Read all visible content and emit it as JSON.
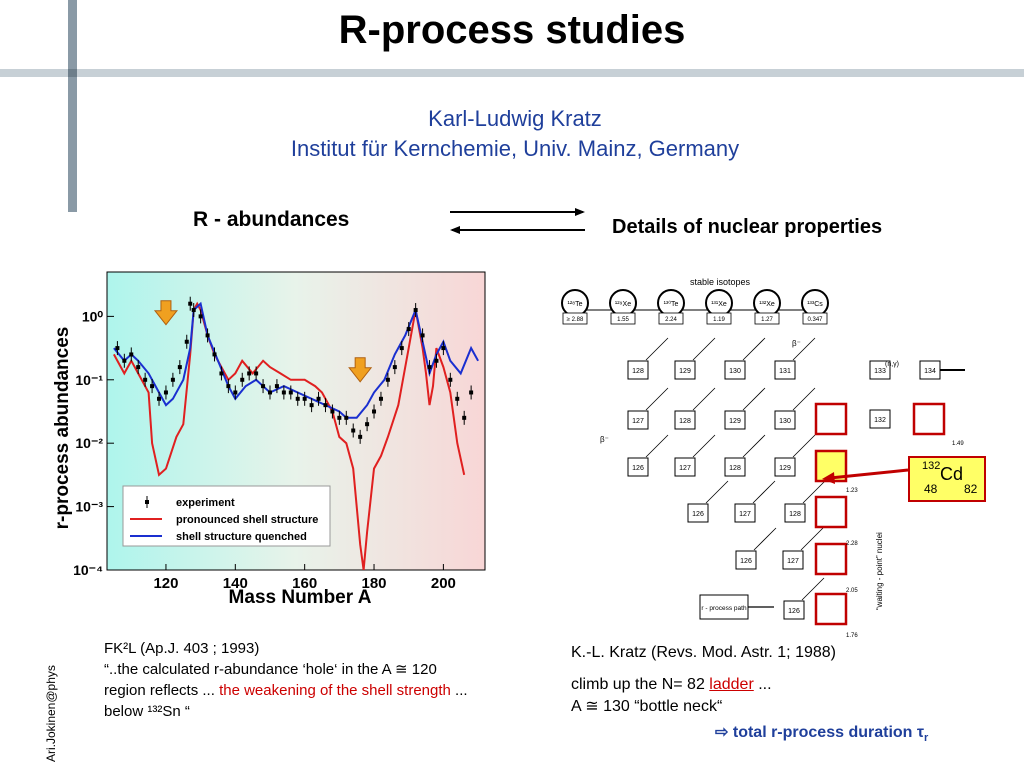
{
  "title": "R-process studies",
  "author": {
    "name": "Karl-Ludwig Kratz",
    "institute": "Institut für Kernchemie, Univ. Mainz, Germany"
  },
  "labels": {
    "r_abundances": "R - abundances",
    "nuclear_details": "Details of nuclear properties"
  },
  "left_ref": {
    "line1": "FK²L (Ap.J. 403 ; 1993)",
    "line2": "“..the calculated r-abundance ‘hole‘ in the A ≅ 120",
    "line3_a": "region reflects ... ",
    "line3_b": "the weakening of the shell strength",
    "line3_c": " ...",
    "line4": "below ¹³²Sn “"
  },
  "right_ref": {
    "line1": "K.-L. Kratz (Revs. Mod. Astr. 1; 1988)",
    "line2_a": "climb up the N= 82 ",
    "line2_b": "ladder",
    "line2_c": " ...",
    "line3": "A ≅ 130 “bottle neck“",
    "conclusion": "total r-process duration τ",
    "conclusion_sub": "r"
  },
  "vertical_text": "Ari.Jokinen@phys",
  "cd_label": {
    "mass": "132",
    "symbol": "Cd",
    "z": "48",
    "n": "82"
  },
  "colors": {
    "title_blue": "#1f3f9b",
    "red_highlight": "#cc0000",
    "experiment": "#000000",
    "pronounced": "#e02020",
    "quenched": "#1a2fd0"
  },
  "chart_data": {
    "type": "line",
    "xlabel": "Mass Number A",
    "ylabel": "r-process abundances",
    "xlim": [
      103,
      212
    ],
    "ylim_log10": [
      -4,
      0.7
    ],
    "log_y": true,
    "x_ticks": [
      120,
      140,
      160,
      180,
      200
    ],
    "y_tick_labels": [
      "10⁰",
      "10⁻¹",
      "10⁻²",
      "10⁻³",
      "10⁻⁴"
    ],
    "legend": [
      "experiment",
      "pronounced shell structure",
      "shell structure quenched"
    ],
    "series": [
      {
        "name": "pronounced shell structure",
        "color": "#e02020",
        "x": [
          105,
          108,
          110,
          112,
          115,
          116,
          118,
          120,
          123,
          125,
          127,
          128,
          129,
          130,
          132,
          134,
          136,
          138,
          140,
          142,
          145,
          148,
          150,
          153,
          156,
          160,
          163,
          165,
          168,
          170,
          172,
          174,
          175,
          176,
          177,
          178,
          180,
          182,
          184,
          187,
          190,
          192,
          194,
          195,
          196,
          197,
          198,
          200,
          202,
          204,
          206
        ],
        "log_y": [
          -0.6,
          -0.9,
          -0.7,
          -0.9,
          -1.2,
          -2.0,
          -2.5,
          -2.4,
          -1.9,
          -1.7,
          -0.6,
          0.1,
          0.2,
          0.1,
          -0.3,
          -0.6,
          -0.8,
          -1.0,
          -0.9,
          -0.7,
          -0.9,
          -0.7,
          -0.8,
          -0.9,
          -1.0,
          -1.0,
          -1.1,
          -1.2,
          -1.5,
          -1.9,
          -2.0,
          -2.4,
          -3.0,
          -3.6,
          -4.0,
          -3.4,
          -2.4,
          -2.2,
          -1.9,
          -1.4,
          -0.5,
          0.1,
          -0.5,
          -0.9,
          -1.4,
          -1.1,
          -0.5,
          -0.8,
          -1.2,
          -2.0,
          -2.5
        ]
      },
      {
        "name": "shell structure quenched",
        "color": "#1a2fd0",
        "x": [
          105,
          108,
          110,
          112,
          115,
          118,
          120,
          122,
          125,
          127,
          128,
          130,
          132,
          135,
          138,
          140,
          143,
          146,
          150,
          154,
          158,
          162,
          166,
          170,
          172,
          175,
          178,
          180,
          183,
          186,
          189,
          192,
          194,
          196,
          198,
          200,
          202,
          205,
          208,
          210
        ],
        "log_y": [
          -0.5,
          -0.7,
          -0.6,
          -0.7,
          -0.9,
          -1.2,
          -1.4,
          -1.3,
          -1.0,
          -0.5,
          0.1,
          0.2,
          -0.3,
          -0.7,
          -1.1,
          -1.3,
          -1.1,
          -1.0,
          -1.2,
          -1.1,
          -1.2,
          -1.3,
          -1.4,
          -1.5,
          -1.6,
          -1.6,
          -1.4,
          -1.2,
          -1.0,
          -0.6,
          -0.3,
          0.1,
          -0.4,
          -0.9,
          -0.6,
          -0.4,
          -0.7,
          -0.9,
          -0.5,
          -0.7
        ]
      },
      {
        "name": "experiment",
        "color": "#000000",
        "x": [
          106,
          108,
          110,
          112,
          114,
          116,
          118,
          120,
          122,
          124,
          126,
          127,
          128,
          130,
          132,
          134,
          136,
          138,
          140,
          142,
          144,
          146,
          148,
          150,
          152,
          154,
          156,
          158,
          160,
          162,
          164,
          166,
          168,
          170,
          172,
          174,
          176,
          178,
          180,
          182,
          184,
          186,
          188,
          190,
          192,
          194,
          196,
          198,
          200,
          202,
          204,
          206,
          208
        ],
        "log_y": [
          -0.5,
          -0.7,
          -0.6,
          -0.8,
          -1.0,
          -1.1,
          -1.3,
          -1.2,
          -1.0,
          -0.8,
          -0.4,
          0.2,
          0.1,
          0.0,
          -0.3,
          -0.6,
          -0.9,
          -1.1,
          -1.2,
          -1.0,
          -0.9,
          -0.9,
          -1.1,
          -1.2,
          -1.1,
          -1.2,
          -1.2,
          -1.3,
          -1.3,
          -1.4,
          -1.3,
          -1.4,
          -1.5,
          -1.6,
          -1.6,
          -1.8,
          -1.9,
          -1.7,
          -1.5,
          -1.3,
          -1.0,
          -0.8,
          -0.5,
          -0.2,
          0.1,
          -0.3,
          -0.8,
          -0.7,
          -0.5,
          -1.0,
          -1.3,
          -1.6,
          -1.2
        ]
      }
    ],
    "annotations": [
      {
        "type": "arrow-down",
        "x": 120,
        "log_y": -0.1,
        "color": "#f0a020"
      },
      {
        "type": "arrow-down",
        "x": 176,
        "log_y": -1.0,
        "color": "#f0a020"
      }
    ]
  },
  "diagram": {
    "stable_isotopes_label": "stable isotopes",
    "stable": [
      {
        "label": "¹²⁸Te",
        "val": "≥ 2.88"
      },
      {
        "label": "¹²⁹Xe",
        "val": "1.55"
      },
      {
        "label": "¹³⁰Te",
        "val": "2.24"
      },
      {
        "label": "¹³¹Xe",
        "val": "1.19"
      },
      {
        "label": "¹³²Xe",
        "val": "1.27"
      },
      {
        "label": "¹³³Cs",
        "val": "0.347"
      }
    ],
    "rows": [
      {
        "cells": [
          "128",
          "129",
          "130",
          "131"
        ]
      },
      {
        "cells": [
          "127",
          "128",
          "129",
          "130"
        ]
      },
      {
        "cells": [
          "126",
          "127",
          "128",
          "129"
        ]
      },
      {
        "cells": [
          "126",
          "127",
          "128"
        ]
      },
      {
        "cells": [
          "126",
          "127"
        ]
      },
      {
        "cells": [
          "126"
        ]
      }
    ],
    "misc": [
      "133",
      "134",
      "132",
      "(n,γ)",
      "β⁻",
      "r - process path",
      "“waiting - point” nuclei",
      "1.23",
      "2.28",
      "2.05",
      "1.76",
      "1.49"
    ]
  }
}
